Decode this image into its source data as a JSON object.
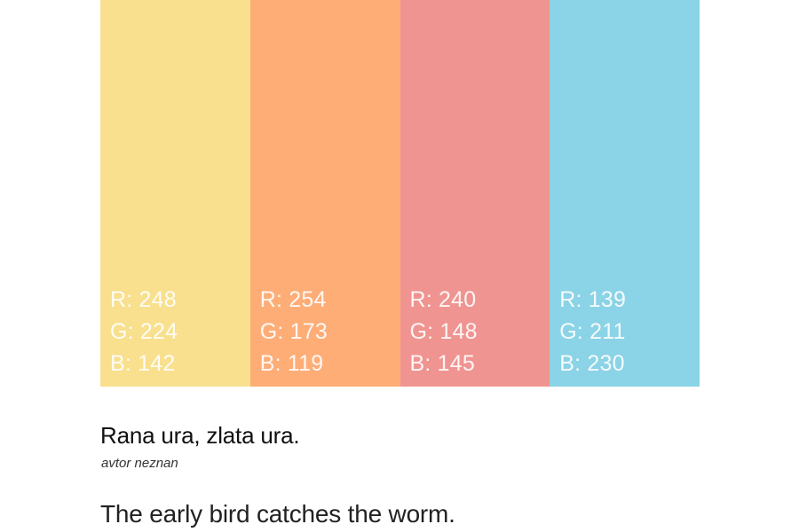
{
  "swatches": [
    {
      "color": "#f8e08e",
      "r": "R: 248",
      "g": "G: 224",
      "b": "B: 142"
    },
    {
      "color": "#fead77",
      "r": "R: 254",
      "g": "G: 173",
      "b": "B: 119"
    },
    {
      "color": "#f09491",
      "r": "R: 240",
      "g": "G: 148",
      "b": "B: 145"
    },
    {
      "color": "#8bd3e6",
      "r": "R: 139",
      "g": "G: 211",
      "b": "B: 230"
    }
  ],
  "quote": "Rana ura, zlata ura.",
  "author": "avtor neznan",
  "translation": "The early bird catches the worm."
}
